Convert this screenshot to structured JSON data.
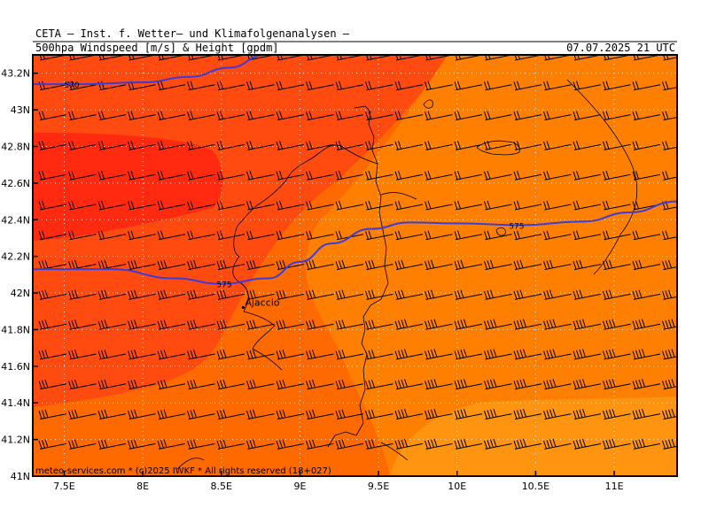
{
  "header": {
    "title": "CETA  –  Inst. f. Wetter–  und Klimafolgenanalysen  –",
    "subtitle": "500hpa Windspeed [m/s] & Height [gpdm]",
    "datetime": "07.07.2025 21 UTC"
  },
  "map": {
    "lon_range": [
      7.3,
      11.4
    ],
    "lat_range": [
      41.0,
      43.3
    ],
    "lat_ticks": [
      {
        "value": 41.0,
        "label": "41N"
      },
      {
        "value": 41.2,
        "label": "41.2N"
      },
      {
        "value": 41.4,
        "label": "41.4N"
      },
      {
        "value": 41.6,
        "label": "41.6N"
      },
      {
        "value": 41.8,
        "label": "41.8N"
      },
      {
        "value": 42.0,
        "label": "42N"
      },
      {
        "value": 42.2,
        "label": "42.2N"
      },
      {
        "value": 42.4,
        "label": "42.4N"
      },
      {
        "value": 42.6,
        "label": "42.6N"
      },
      {
        "value": 42.8,
        "label": "42.8N"
      },
      {
        "value": 43.0,
        "label": "43N"
      },
      {
        "value": 43.2,
        "label": "43.2N"
      }
    ],
    "lon_ticks": [
      {
        "value": 7.5,
        "label": "7.5E"
      },
      {
        "value": 8.0,
        "label": "8E"
      },
      {
        "value": 8.5,
        "label": "8.5E"
      },
      {
        "value": 9.0,
        "label": "9E"
      },
      {
        "value": 9.5,
        "label": "9.5E"
      },
      {
        "value": 10.0,
        "label": "10E"
      },
      {
        "value": 10.5,
        "label": "10.5E"
      },
      {
        "value": 11.0,
        "label": "11E"
      }
    ],
    "contours": [
      {
        "label": "570",
        "label_lon": 7.5,
        "label_lat": 43.14,
        "points": [
          [
            7.3,
            43.14
          ],
          [
            7.6,
            43.14
          ],
          [
            8.0,
            43.15
          ],
          [
            8.3,
            43.18
          ],
          [
            8.55,
            43.23
          ],
          [
            8.78,
            43.3
          ]
        ]
      },
      {
        "label": "575",
        "label_lon": 8.47,
        "label_lat": 42.05,
        "points": [
          [
            7.3,
            42.13
          ],
          [
            7.8,
            42.13
          ],
          [
            8.2,
            42.08
          ],
          [
            8.5,
            42.05
          ],
          [
            8.8,
            42.08
          ],
          [
            9.0,
            42.17
          ],
          [
            9.2,
            42.27
          ],
          [
            9.45,
            42.35
          ],
          [
            9.7,
            42.385
          ],
          [
            10.0,
            42.38
          ],
          [
            10.4,
            42.37
          ],
          [
            10.8,
            42.39
          ],
          [
            11.1,
            42.44
          ],
          [
            11.4,
            42.5
          ]
        ]
      }
    ],
    "colors": {
      "contour": "#3c3cdc",
      "bg": "#ff6a00",
      "dark": "#ff4a10",
      "red": "#ff2a10",
      "light": "#ff8000",
      "lighter": "#ff9410"
    },
    "city": {
      "name": "Ajaccio",
      "lon": 8.74,
      "lat": 41.93
    },
    "credit": "meteo-services.com * (c)2025 IWKF * All rights reserved (18+027)"
  }
}
